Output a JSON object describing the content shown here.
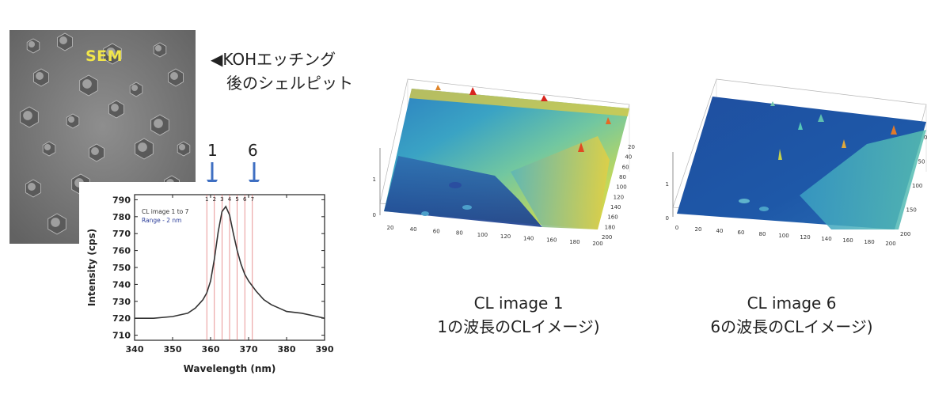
{
  "sem": {
    "label": "SEM"
  },
  "annotation": {
    "line1": "◀KOHエッチング",
    "line2": "後のシェルピット"
  },
  "markers": {
    "left_label": "1",
    "right_label": "6",
    "arrow_color": "#3f6fc2"
  },
  "chart_data": {
    "type": "line",
    "xlabel": "Wavelength (nm)",
    "ylabel": "Intensity (cps)",
    "xlim": [
      340,
      390
    ],
    "ylim": [
      707,
      793
    ],
    "xticks": [
      340,
      350,
      360,
      370,
      380,
      390
    ],
    "yticks": [
      710,
      720,
      730,
      740,
      750,
      760,
      770,
      780,
      790
    ],
    "legend_lines": [
      "CL image  1 to 7",
      "Range - 2 nm"
    ],
    "legend_colors": [
      "#333333",
      "#2c3e9a"
    ],
    "line_color": "#333333",
    "marker_color": "#e06a6a",
    "series": [
      {
        "x": [
          340,
          345,
          350,
          352,
          354,
          356,
          358,
          359,
          360,
          361,
          362,
          363,
          364,
          365,
          366,
          367,
          368,
          369,
          370,
          372,
          374,
          376,
          378,
          380,
          384,
          388,
          390
        ],
        "y": [
          720,
          720,
          721,
          722,
          723,
          726,
          731,
          735,
          742,
          755,
          771,
          783,
          786,
          781,
          770,
          760,
          752,
          746,
          742,
          736,
          731,
          728,
          726,
          724,
          723,
          721,
          720
        ]
      }
    ],
    "wavelength_lines": {
      "labels": [
        "1",
        "2",
        "3",
        "4",
        "5",
        "6",
        "7"
      ],
      "x": [
        359,
        361,
        363,
        365,
        367,
        369,
        371
      ]
    }
  },
  "cl_image_1": {
    "caption_line1": "CL image 1",
    "caption_line2": "1の波長のCLイメージ)",
    "x_ticks": [
      "20",
      "40",
      "60",
      "80",
      "100",
      "120",
      "140",
      "160",
      "180",
      "200"
    ],
    "y_ticks": [
      "20",
      "40",
      "60",
      "80",
      "100",
      "120",
      "140",
      "160",
      "180",
      "200"
    ],
    "z_ticks": [
      "0",
      "1"
    ]
  },
  "cl_image_6": {
    "caption_line1": "CL image 6",
    "caption_line2": "6の波長のCLイメージ)",
    "x_ticks": [
      "0",
      "20",
      "40",
      "60",
      "80",
      "100",
      "120",
      "140",
      "160",
      "180",
      "200"
    ],
    "y_ticks": [
      "0",
      "50",
      "100",
      "150",
      "200"
    ],
    "z_ticks": [
      "0",
      "1"
    ]
  }
}
